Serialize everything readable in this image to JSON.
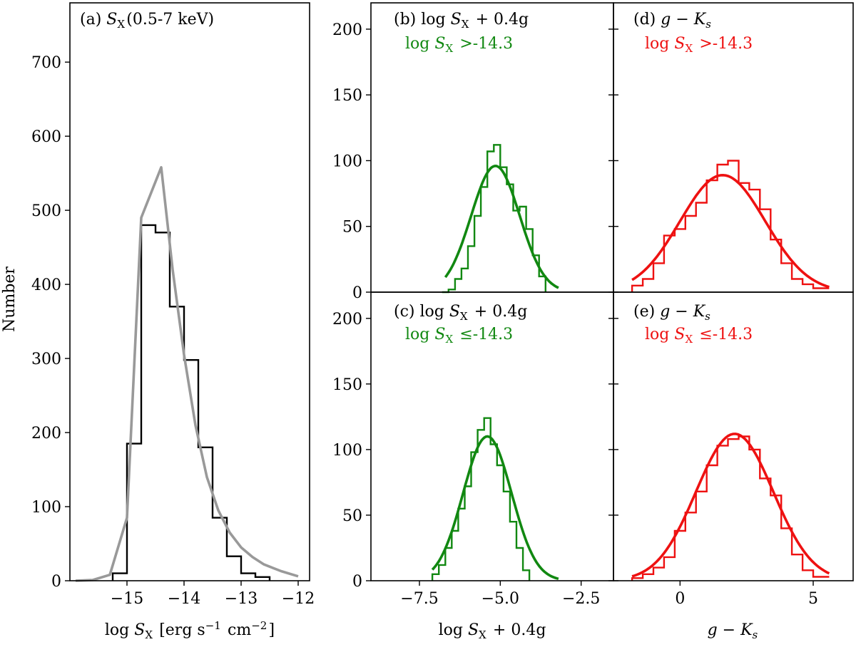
{
  "figure": {
    "ylabel": "Number"
  },
  "chart_data": [
    {
      "id": "a",
      "type": "histogram",
      "title": "(a) S_X(0.5-7 keV)",
      "title_color": "#000000",
      "xlabel": "log S_X [erg s^-1 cm^-2]",
      "xlim": [
        -16,
        -11.8
      ],
      "ylim": [
        0,
        780
      ],
      "xticks": [
        -15,
        -14,
        -13,
        -12
      ],
      "xtick_labels": [
        "−15",
        "−14",
        "−13",
        "−12"
      ],
      "yticks": [
        0,
        100,
        200,
        300,
        400,
        500,
        600,
        700
      ],
      "ytick_labels": [
        "0",
        "100",
        "200",
        "300",
        "400",
        "500",
        "600",
        "700"
      ],
      "histogram": {
        "color": "#000000",
        "edges": [
          -15.25,
          -15.0,
          -14.75,
          -14.5,
          -14.25,
          -14.0,
          -13.75,
          -13.5,
          -13.25,
          -13.0,
          -12.75,
          -12.5
        ],
        "counts": [
          10,
          185,
          480,
          470,
          370,
          298,
          180,
          85,
          33,
          10,
          5,
          0
        ]
      },
      "curve": {
        "color": "#999999",
        "x": [
          -15.9,
          -15.6,
          -15.3,
          -15.0,
          -14.75,
          -14.4,
          -14.2,
          -14.0,
          -13.8,
          -13.6,
          -13.4,
          -13.2,
          -13.0,
          -12.8,
          -12.6,
          -12.3,
          -12.0
        ],
        "y": [
          0,
          1,
          8,
          85,
          490,
          558,
          420,
          305,
          210,
          140,
          95,
          65,
          45,
          32,
          22,
          13,
          6
        ]
      }
    },
    {
      "id": "b",
      "type": "histogram",
      "title": "(b) log S_X + 0.4g",
      "title_color": "#000000",
      "subtitle": "log S_X >-14.3",
      "subtitle_color": "#118811",
      "xlim": [
        -9.0,
        -1.5
      ],
      "ylim": [
        0,
        220
      ],
      "yticks": [
        0,
        50,
        100,
        150,
        200
      ],
      "ytick_labels": [
        "0",
        "50",
        "100",
        "150",
        "200"
      ],
      "histogram": {
        "color": "#118811",
        "edges": [
          -6.8,
          -6.6,
          -6.4,
          -6.2,
          -6.0,
          -5.8,
          -5.6,
          -5.4,
          -5.2,
          -5.0,
          -4.8,
          -4.6,
          -4.4,
          -4.2,
          -4.0,
          -3.8,
          -3.6
        ],
        "counts": [
          0,
          2,
          10,
          18,
          35,
          58,
          80,
          107,
          112,
          95,
          82,
          62,
          65,
          48,
          28,
          12,
          0
        ]
      },
      "fit": {
        "color": "#118811",
        "amplitude": 96,
        "mean": -5.15,
        "sigma": 0.75,
        "range": [
          -6.7,
          -3.2
        ]
      }
    },
    {
      "id": "c",
      "type": "histogram",
      "title": "(c) log S_X + 0.4g",
      "title_color": "#000000",
      "subtitle": "log S_X ≤-14.3",
      "subtitle_color": "#118811",
      "xlabel": "log S_X + 0.4g",
      "xlim": [
        -9.0,
        -1.5
      ],
      "ylim": [
        0,
        220
      ],
      "xticks": [
        -7.5,
        -5.0,
        -2.5
      ],
      "xtick_labels": [
        "−7.5",
        "−5.0",
        "−2.5"
      ],
      "yticks": [
        0,
        50,
        100,
        150,
        200
      ],
      "ytick_labels": [
        "0",
        "50",
        "100",
        "150",
        "200"
      ],
      "histogram": {
        "color": "#118811",
        "edges": [
          -7.1,
          -6.9,
          -6.7,
          -6.5,
          -6.3,
          -6.1,
          -5.9,
          -5.7,
          -5.5,
          -5.3,
          -5.1,
          -4.9,
          -4.7,
          -4.5,
          -4.3,
          -4.1
        ],
        "counts": [
          5,
          12,
          25,
          38,
          55,
          72,
          98,
          115,
          124,
          104,
          88,
          68,
          45,
          25,
          8,
          0
        ]
      },
      "fit": {
        "color": "#118811",
        "amplitude": 110,
        "mean": -5.4,
        "sigma": 0.75,
        "range": [
          -7.1,
          -3.2
        ]
      }
    },
    {
      "id": "d",
      "type": "histogram",
      "title": "(d) g − K_s",
      "title_color": "#000000",
      "subtitle": "log S_X >-14.3",
      "subtitle_color": "#ee1111",
      "xlim": [
        -2.5,
        6.5
      ],
      "ylim": [
        0,
        220
      ],
      "histogram": {
        "color": "#ee1111",
        "edges": [
          -1.8,
          -1.4,
          -1.0,
          -0.6,
          -0.2,
          0.2,
          0.6,
          1.0,
          1.4,
          1.8,
          2.2,
          2.6,
          3.0,
          3.4,
          3.8,
          4.2,
          4.6,
          5.0,
          5.6
        ],
        "counts": [
          5,
          10,
          22,
          43,
          48,
          58,
          68,
          85,
          97,
          100,
          83,
          78,
          63,
          40,
          22,
          10,
          6,
          3
        ]
      },
      "fit": {
        "color": "#ee1111",
        "amplitude": 89,
        "mean": 1.6,
        "sigma": 1.6,
        "range": [
          -1.8,
          5.6
        ]
      }
    },
    {
      "id": "e",
      "type": "histogram",
      "title": "(e) g − K_s",
      "title_color": "#000000",
      "subtitle": "log S_X ≤-14.3",
      "subtitle_color": "#ee1111",
      "xlabel": "g − K_s",
      "xlim": [
        -2.5,
        6.5
      ],
      "ylim": [
        0,
        220
      ],
      "xticks": [
        0,
        5
      ],
      "xtick_labels": [
        "0",
        "5"
      ],
      "histogram": {
        "color": "#ee1111",
        "edges": [
          -1.8,
          -1.4,
          -1.0,
          -0.6,
          -0.2,
          0.2,
          0.6,
          1.0,
          1.4,
          1.8,
          2.2,
          2.6,
          3.0,
          3.4,
          3.8,
          4.2,
          4.6,
          5.0,
          5.6
        ],
        "counts": [
          2,
          5,
          10,
          18,
          38,
          52,
          68,
          88,
          103,
          108,
          110,
          100,
          78,
          65,
          40,
          20,
          8,
          3
        ]
      },
      "fit": {
        "color": "#ee1111",
        "amplitude": 112,
        "mean": 2.05,
        "sigma": 1.45,
        "range": [
          -1.8,
          5.6
        ]
      }
    }
  ]
}
